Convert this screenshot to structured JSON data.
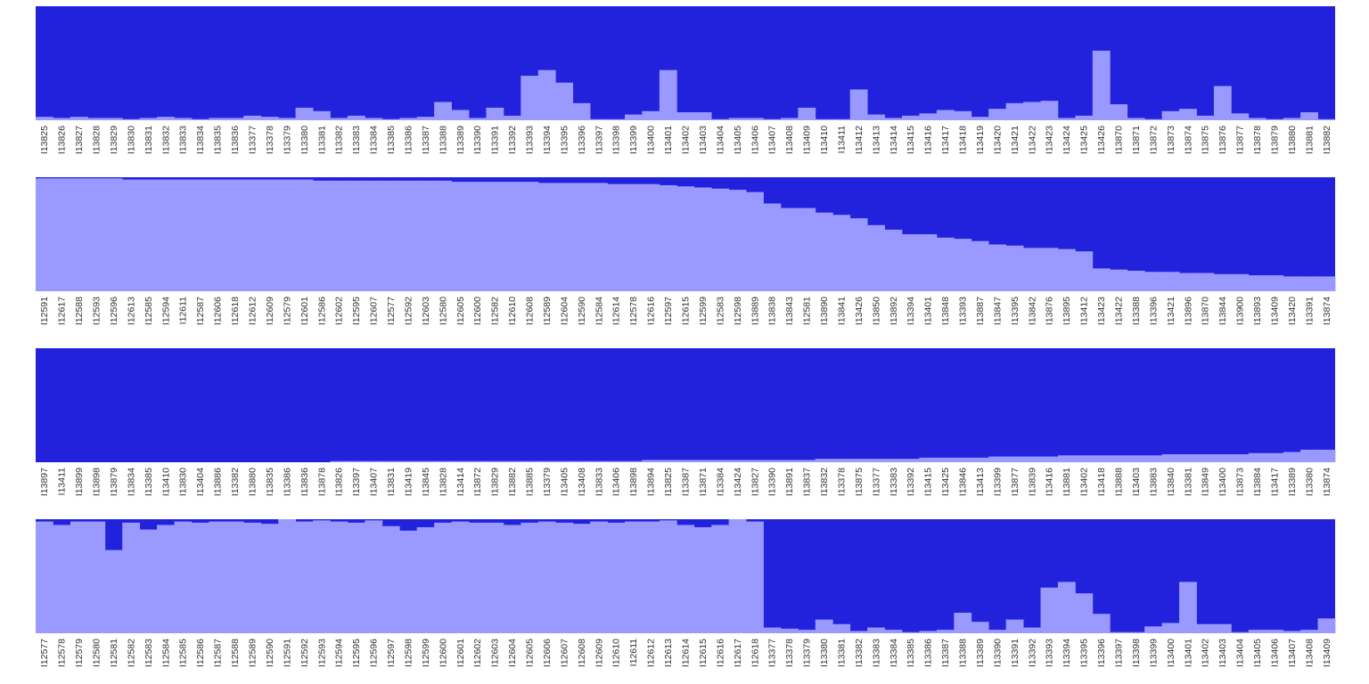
{
  "colors": {
    "dark": "#2222dd",
    "light": "#9999ff",
    "background": "#ffffff",
    "text": "#333333"
  },
  "chart_data": [
    {
      "type": "bar",
      "stacked": true,
      "ylim": [
        0,
        1
      ],
      "grid": false,
      "legend": "none",
      "categories": [
        "I13825",
        "I13826",
        "I13827",
        "I13828",
        "I13829",
        "I13830",
        "I13831",
        "I13832",
        "I13833",
        "I13834",
        "I13835",
        "I13836",
        "I13377",
        "I13378",
        "I13379",
        "I13380",
        "I13381",
        "I13382",
        "I13383",
        "I13384",
        "I13385",
        "I13386",
        "I13387",
        "I13388",
        "I13389",
        "I13390",
        "I13391",
        "I13392",
        "I13393",
        "I13394",
        "I13395",
        "I13396",
        "I13397",
        "I13398",
        "I13399",
        "I13400",
        "I13401",
        "I13402",
        "I13403",
        "I13404",
        "I13405",
        "I13406",
        "I13407",
        "I13408",
        "I13409",
        "I13410",
        "I13411",
        "I13412",
        "I13413",
        "I13414",
        "I13415",
        "I13416",
        "I13417",
        "I13418",
        "I13419",
        "I13420",
        "I13421",
        "I13422",
        "I13423",
        "I13424",
        "I13425",
        "I13426",
        "I13870",
        "I13871",
        "I13872",
        "I13873",
        "I13874",
        "I13875",
        "I13876",
        "I13877",
        "I13878",
        "I13879",
        "I13880",
        "I13881",
        "I13882"
      ],
      "light_fraction": [
        0.03,
        0.02,
        0.03,
        0.02,
        0.02,
        0.01,
        0.02,
        0.03,
        0.02,
        0.01,
        0.02,
        0.02,
        0.04,
        0.03,
        0.02,
        0.11,
        0.08,
        0.02,
        0.04,
        0.02,
        0.01,
        0.02,
        0.03,
        0.16,
        0.09,
        0.02,
        0.11,
        0.04,
        0.39,
        0.44,
        0.33,
        0.15,
        0.01,
        0.01,
        0.05,
        0.08,
        0.44,
        0.07,
        0.07,
        0.01,
        0.02,
        0.02,
        0.01,
        0.02,
        0.11,
        0.01,
        0.01,
        0.27,
        0.05,
        0.02,
        0.04,
        0.06,
        0.09,
        0.08,
        0.03,
        0.1,
        0.15,
        0.16,
        0.17,
        0.02,
        0.04,
        0.61,
        0.14,
        0.02,
        0.01,
        0.08,
        0.1,
        0.04,
        0.3,
        0.06,
        0.02,
        0.01,
        0.02,
        0.07,
        0.01
      ]
    },
    {
      "type": "bar",
      "stacked": true,
      "ylim": [
        0,
        1
      ],
      "grid": false,
      "legend": "none",
      "categories": [
        "I12591",
        "I12617",
        "I12588",
        "I12593",
        "I12596",
        "I12613",
        "I12585",
        "I12594",
        "I12611",
        "I12587",
        "I12606",
        "I12618",
        "I12612",
        "I12609",
        "I12579",
        "I12601",
        "I12586",
        "I12602",
        "I12595",
        "I12607",
        "I12577",
        "I12592",
        "I12603",
        "I12580",
        "I12605",
        "I12600",
        "I12582",
        "I12610",
        "I12608",
        "I12589",
        "I12604",
        "I12590",
        "I12584",
        "I12614",
        "I12578",
        "I12616",
        "I12597",
        "I12615",
        "I12599",
        "I12583",
        "I12598",
        "I13889",
        "I13838",
        "I13843",
        "I12581",
        "I13890",
        "I13841",
        "I13426",
        "I13850",
        "I13892",
        "I13394",
        "I13401",
        "I13848",
        "I13393",
        "I13887",
        "I13847",
        "I13395",
        "I13842",
        "I13876",
        "I13895",
        "I13412",
        "I13423",
        "I13422",
        "I13388",
        "I13396",
        "I13421",
        "I13896",
        "I13870",
        "I13844",
        "I13900",
        "I13893",
        "I13409",
        "I13420",
        "I13391",
        "I13874"
      ],
      "light_fraction": [
        0.99,
        0.99,
        0.99,
        0.99,
        0.99,
        0.98,
        0.98,
        0.98,
        0.98,
        0.98,
        0.98,
        0.98,
        0.98,
        0.98,
        0.98,
        0.98,
        0.97,
        0.97,
        0.97,
        0.97,
        0.97,
        0.97,
        0.97,
        0.97,
        0.96,
        0.96,
        0.96,
        0.96,
        0.96,
        0.95,
        0.95,
        0.95,
        0.95,
        0.94,
        0.94,
        0.94,
        0.93,
        0.92,
        0.91,
        0.9,
        0.89,
        0.87,
        0.77,
        0.73,
        0.73,
        0.69,
        0.67,
        0.64,
        0.58,
        0.54,
        0.5,
        0.5,
        0.47,
        0.46,
        0.44,
        0.41,
        0.4,
        0.38,
        0.38,
        0.37,
        0.35,
        0.2,
        0.19,
        0.18,
        0.17,
        0.17,
        0.16,
        0.16,
        0.15,
        0.15,
        0.14,
        0.14,
        0.13,
        0.13,
        0.13
      ]
    },
    {
      "type": "bar",
      "stacked": true,
      "ylim": [
        0,
        1
      ],
      "grid": false,
      "legend": "none",
      "categories": [
        "I13897",
        "I13411",
        "I13899",
        "I13898",
        "I13879",
        "I13834",
        "I13385",
        "I13410",
        "I13830",
        "I13404",
        "I13886",
        "I13382",
        "I13880",
        "I13835",
        "I13386",
        "I13836",
        "I13878",
        "I13826",
        "I13397",
        "I13407",
        "I13831",
        "I13419",
        "I13845",
        "I13828",
        "I13414",
        "I13872",
        "I13829",
        "I13882",
        "I13885",
        "I13379",
        "I13405",
        "I13408",
        "I13833",
        "I13406",
        "I13898",
        "I13894",
        "I13825",
        "I13387",
        "I13871",
        "I13384",
        "I13424",
        "I13827",
        "I13390",
        "I13891",
        "I13837",
        "I13832",
        "I13378",
        "I13875",
        "I13377",
        "I13383",
        "I13392",
        "I13415",
        "I13425",
        "I13846",
        "I13413",
        "I13399",
        "I13877",
        "I13839",
        "I13416",
        "I13881",
        "I13402",
        "I13418",
        "I13888",
        "I13403",
        "I13883",
        "I13840",
        "I13381",
        "I13849",
        "I13400",
        "I13873",
        "I13884",
        "I13417",
        "I13389",
        "I13380",
        "I13874"
      ],
      "light_fraction": [
        0.0,
        0.0,
        0.0,
        0.0,
        0.0,
        0.0,
        0.0,
        0.0,
        0.0,
        0.0,
        0.0,
        0.0,
        0.0,
        0.0,
        0.0,
        0.0,
        0.0,
        0.01,
        0.01,
        0.01,
        0.01,
        0.01,
        0.01,
        0.01,
        0.01,
        0.01,
        0.01,
        0.01,
        0.01,
        0.01,
        0.01,
        0.01,
        0.01,
        0.01,
        0.01,
        0.02,
        0.02,
        0.02,
        0.02,
        0.02,
        0.02,
        0.02,
        0.02,
        0.02,
        0.02,
        0.03,
        0.03,
        0.03,
        0.03,
        0.03,
        0.03,
        0.04,
        0.04,
        0.04,
        0.04,
        0.05,
        0.05,
        0.05,
        0.05,
        0.06,
        0.06,
        0.06,
        0.06,
        0.06,
        0.06,
        0.07,
        0.07,
        0.07,
        0.07,
        0.07,
        0.08,
        0.08,
        0.09,
        0.11,
        0.11
      ]
    },
    {
      "type": "bar",
      "stacked": true,
      "ylim": [
        0,
        1
      ],
      "grid": false,
      "legend": "none",
      "categories": [
        "I12577",
        "I12578",
        "I12579",
        "I12580",
        "I12581",
        "I12582",
        "I12583",
        "I12584",
        "I12585",
        "I12586",
        "I12587",
        "I12588",
        "I12589",
        "I12590",
        "I12591",
        "I12592",
        "I12593",
        "I12594",
        "I12595",
        "I12596",
        "I12597",
        "I12598",
        "I12599",
        "I12600",
        "I12601",
        "I12602",
        "I12603",
        "I12604",
        "I12605",
        "I12606",
        "I12607",
        "I12608",
        "I12609",
        "I12610",
        "I12611",
        "I12612",
        "I12613",
        "I12614",
        "I12615",
        "I12616",
        "I12617",
        "I12618",
        "I13377",
        "I13378",
        "I13379",
        "I13380",
        "I13381",
        "I13382",
        "I13383",
        "I13384",
        "I13385",
        "I13386",
        "I13387",
        "I13388",
        "I13389",
        "I13390",
        "I13391",
        "I13392",
        "I13393",
        "I13394",
        "I13395",
        "I13396",
        "I13397",
        "I13398",
        "I13399",
        "I13400",
        "I13401",
        "I13402",
        "I13403",
        "I13404",
        "I13405",
        "I13406",
        "I13407",
        "I13408",
        "I13409"
      ],
      "light_fraction": [
        0.98,
        0.95,
        0.98,
        0.98,
        0.73,
        0.97,
        0.91,
        0.95,
        0.98,
        0.97,
        0.98,
        0.98,
        0.97,
        0.96,
        1.0,
        0.98,
        0.99,
        0.98,
        0.97,
        0.99,
        0.94,
        0.9,
        0.93,
        0.97,
        0.98,
        0.97,
        0.97,
        0.95,
        0.97,
        0.98,
        0.97,
        0.96,
        0.98,
        0.97,
        0.98,
        0.98,
        0.99,
        0.95,
        0.93,
        0.95,
        1.0,
        0.98,
        0.05,
        0.04,
        0.03,
        0.12,
        0.08,
        0.02,
        0.05,
        0.03,
        0.01,
        0.02,
        0.03,
        0.18,
        0.1,
        0.03,
        0.12,
        0.05,
        0.4,
        0.45,
        0.35,
        0.17,
        0.01,
        0.01,
        0.06,
        0.09,
        0.45,
        0.08,
        0.08,
        0.01,
        0.03,
        0.03,
        0.02,
        0.03,
        0.13
      ]
    }
  ]
}
